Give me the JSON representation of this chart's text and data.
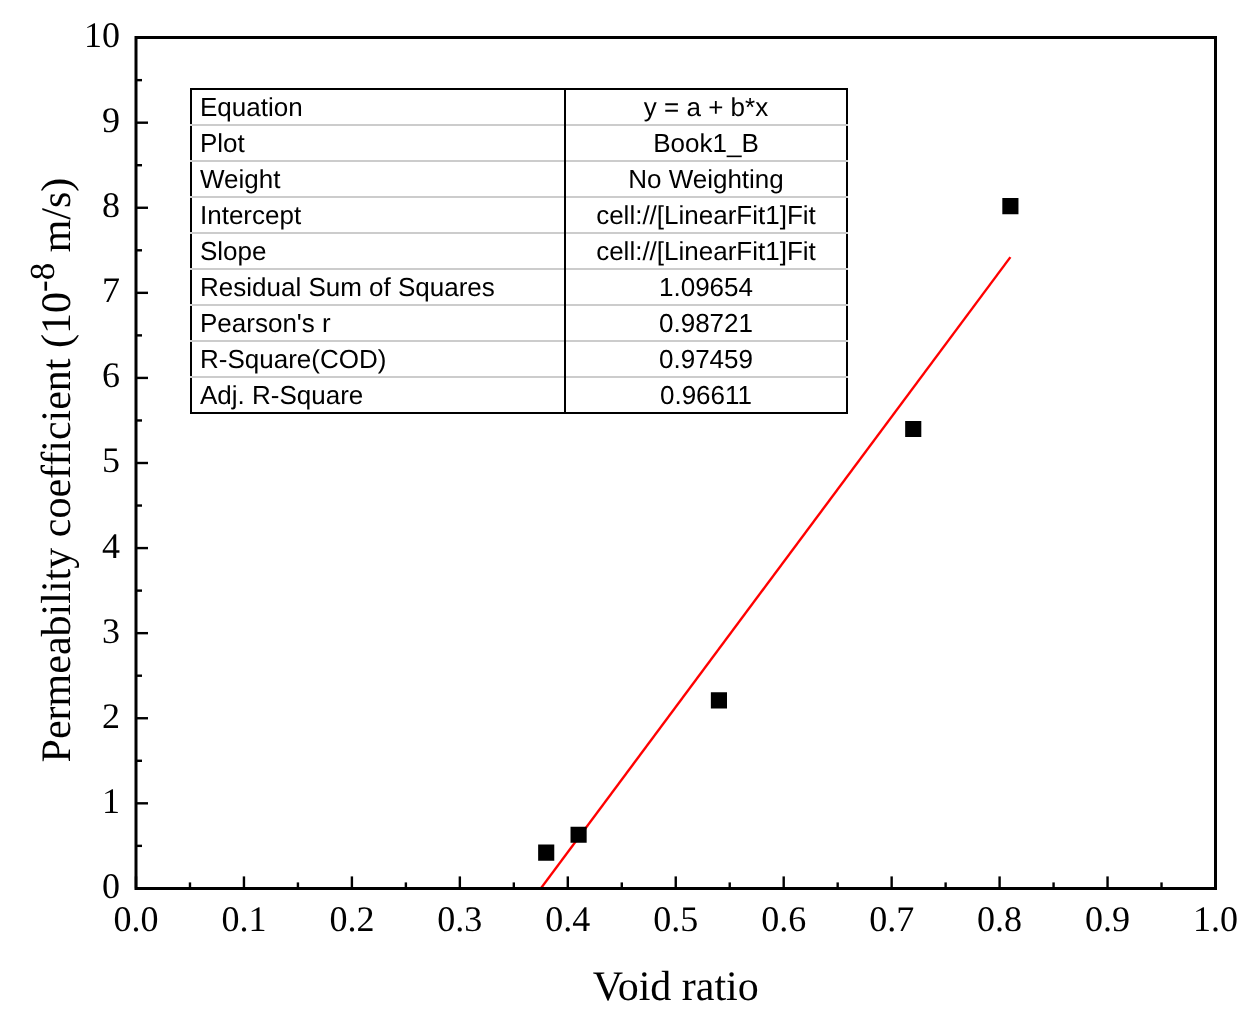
{
  "chart_data": {
    "type": "scatter",
    "xlabel": "Void ratio",
    "ylabel": "Permeability coefficient (10$^{-8}$ m/s)",
    "xlim": [
      0,
      1
    ],
    "xticks": [
      {
        "value": 0,
        "label": "0.0"
      },
      {
        "value": 0.1,
        "label": "0.1"
      },
      {
        "value": 0.2,
        "label": "0.2"
      },
      {
        "value": 0.3,
        "label": "0.3"
      },
      {
        "value": 0.4,
        "label": "0.4"
      },
      {
        "value": 0.5,
        "label": "0.5"
      },
      {
        "value": 0.6,
        "label": "0.6"
      },
      {
        "value": 0.7,
        "label": "0.7"
      },
      {
        "value": 0.8,
        "label": "0.8"
      },
      {
        "value": 0.9,
        "label": "0.9"
      },
      {
        "value": 1,
        "label": "1.0"
      }
    ],
    "ylim": [
      0,
      10
    ],
    "yticks": [
      0,
      1,
      2,
      3,
      4,
      5,
      6,
      7,
      8,
      9,
      10
    ],
    "grid": false,
    "legend": false,
    "marker": "square",
    "series": [
      {
        "color": "#000000",
        "x": [
          0.38,
          0.41,
          0.54,
          0.72,
          0.81
        ],
        "values": [
          0.42,
          0.63,
          2.21,
          5.4,
          8.02
        ]
      },
      {
        "type": "line",
        "color": "#ff0000",
        "marker": "none",
        "x": [
          0.375,
          0.81
        ],
        "values": [
          0,
          7.42
        ]
      }
    ],
    "annotations": [
      "Equation",
      "y = a + b*x",
      "Plot",
      "Book1_B",
      "Weight",
      "No Weighting",
      "Intercept",
      "cell://[LinearFit1]Fit",
      "Slope",
      "cell://[LinearFit1]Fit",
      "Residual Sum of Squares",
      "1.09654",
      "Pearson's r",
      "0.98721",
      "R-Square(COD)",
      "0.97459",
      "Adj. R-Square",
      "0.96611"
    ]
  }
}
